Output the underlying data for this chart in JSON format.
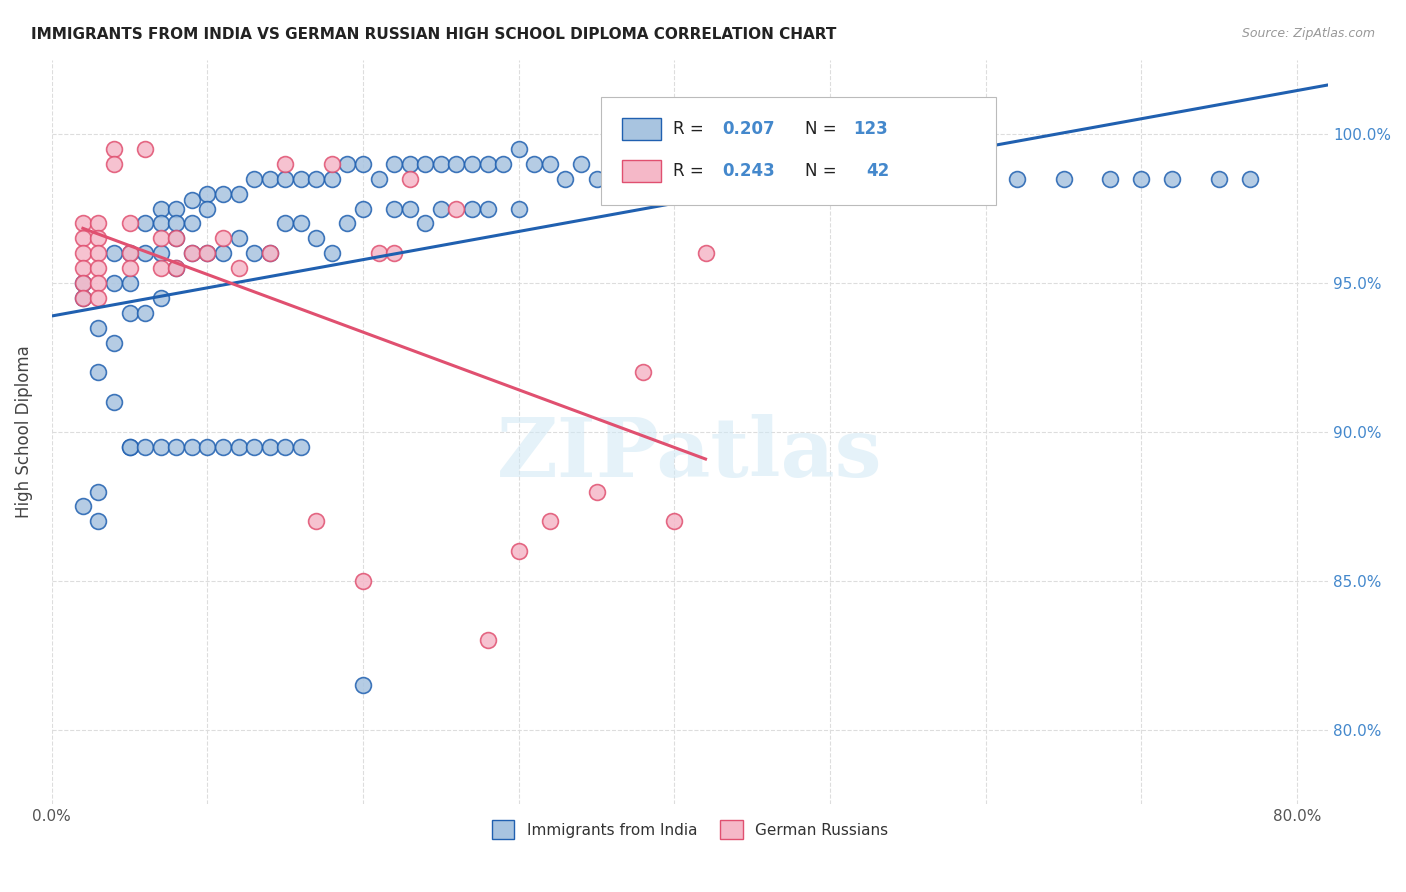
{
  "title": "IMMIGRANTS FROM INDIA VS GERMAN RUSSIAN HIGH SCHOOL DIPLOMA CORRELATION CHART",
  "source": "Source: ZipAtlas.com",
  "ylabel": "High School Diploma",
  "ytick_labels": [
    "80.0%",
    "85.0%",
    "90.0%",
    "95.0%",
    "100.0%"
  ],
  "ytick_values": [
    0.8,
    0.85,
    0.9,
    0.95,
    1.0
  ],
  "xlim": [
    0.0,
    0.82
  ],
  "ylim": [
    0.775,
    1.025
  ],
  "color_india": "#a8c4e0",
  "color_india_line": "#2060b0",
  "color_german": "#f5b8c8",
  "color_german_line": "#e05070",
  "background": "#ffffff",
  "watermark": "ZIPatlas",
  "india_x": [
    0.02,
    0.03,
    0.03,
    0.04,
    0.04,
    0.04,
    0.05,
    0.05,
    0.05,
    0.06,
    0.06,
    0.06,
    0.07,
    0.07,
    0.07,
    0.07,
    0.08,
    0.08,
    0.08,
    0.08,
    0.09,
    0.09,
    0.09,
    0.1,
    0.1,
    0.1,
    0.11,
    0.11,
    0.12,
    0.12,
    0.13,
    0.13,
    0.14,
    0.14,
    0.15,
    0.15,
    0.16,
    0.16,
    0.17,
    0.17,
    0.18,
    0.18,
    0.19,
    0.19,
    0.2,
    0.2,
    0.21,
    0.22,
    0.22,
    0.23,
    0.23,
    0.24,
    0.24,
    0.25,
    0.25,
    0.26,
    0.27,
    0.27,
    0.28,
    0.28,
    0.29,
    0.3,
    0.3,
    0.31,
    0.32,
    0.33,
    0.34,
    0.35,
    0.36,
    0.38,
    0.4,
    0.42,
    0.43,
    0.44,
    0.46,
    0.47,
    0.48,
    0.5,
    0.52,
    0.53,
    0.54,
    0.55,
    0.56,
    0.58,
    0.6,
    0.62,
    0.65,
    0.68,
    0.7,
    0.72,
    0.75,
    0.77,
    0.02,
    0.02,
    0.03,
    0.03,
    0.04,
    0.05,
    0.05,
    0.06,
    0.07,
    0.08,
    0.09,
    0.1,
    0.11,
    0.12,
    0.13,
    0.14,
    0.15,
    0.16,
    0.2
  ],
  "india_y": [
    0.875,
    0.88,
    0.87,
    0.96,
    0.95,
    0.93,
    0.96,
    0.95,
    0.94,
    0.97,
    0.96,
    0.94,
    0.975,
    0.97,
    0.96,
    0.945,
    0.975,
    0.97,
    0.965,
    0.955,
    0.978,
    0.97,
    0.96,
    0.98,
    0.975,
    0.96,
    0.98,
    0.96,
    0.98,
    0.965,
    0.985,
    0.96,
    0.985,
    0.96,
    0.985,
    0.97,
    0.985,
    0.97,
    0.985,
    0.965,
    0.985,
    0.96,
    0.99,
    0.97,
    0.99,
    0.975,
    0.985,
    0.99,
    0.975,
    0.99,
    0.975,
    0.99,
    0.97,
    0.99,
    0.975,
    0.99,
    0.99,
    0.975,
    0.99,
    0.975,
    0.99,
    0.995,
    0.975,
    0.99,
    0.99,
    0.985,
    0.99,
    0.985,
    0.985,
    0.99,
    0.98,
    0.985,
    0.985,
    0.985,
    0.985,
    0.985,
    0.985,
    0.985,
    0.985,
    0.985,
    0.985,
    0.985,
    0.985,
    0.985,
    0.985,
    0.985,
    0.985,
    0.985,
    0.985,
    0.985,
    0.985,
    0.985,
    0.95,
    0.945,
    0.935,
    0.92,
    0.91,
    0.895,
    0.895,
    0.895,
    0.895,
    0.895,
    0.895,
    0.895,
    0.895,
    0.895,
    0.895,
    0.895,
    0.895,
    0.895,
    0.815
  ],
  "german_x": [
    0.02,
    0.02,
    0.02,
    0.02,
    0.02,
    0.02,
    0.03,
    0.03,
    0.03,
    0.03,
    0.03,
    0.03,
    0.04,
    0.04,
    0.05,
    0.05,
    0.05,
    0.06,
    0.07,
    0.07,
    0.08,
    0.08,
    0.09,
    0.1,
    0.11,
    0.12,
    0.14,
    0.15,
    0.17,
    0.18,
    0.2,
    0.21,
    0.22,
    0.23,
    0.26,
    0.28,
    0.3,
    0.32,
    0.35,
    0.38,
    0.4,
    0.42
  ],
  "german_y": [
    0.97,
    0.965,
    0.96,
    0.955,
    0.95,
    0.945,
    0.97,
    0.965,
    0.96,
    0.955,
    0.95,
    0.945,
    0.995,
    0.99,
    0.97,
    0.96,
    0.955,
    0.995,
    0.965,
    0.955,
    0.965,
    0.955,
    0.96,
    0.96,
    0.965,
    0.955,
    0.96,
    0.99,
    0.87,
    0.99,
    0.85,
    0.96,
    0.96,
    0.985,
    0.975,
    0.83,
    0.86,
    0.87,
    0.88,
    0.92,
    0.87,
    0.96
  ]
}
